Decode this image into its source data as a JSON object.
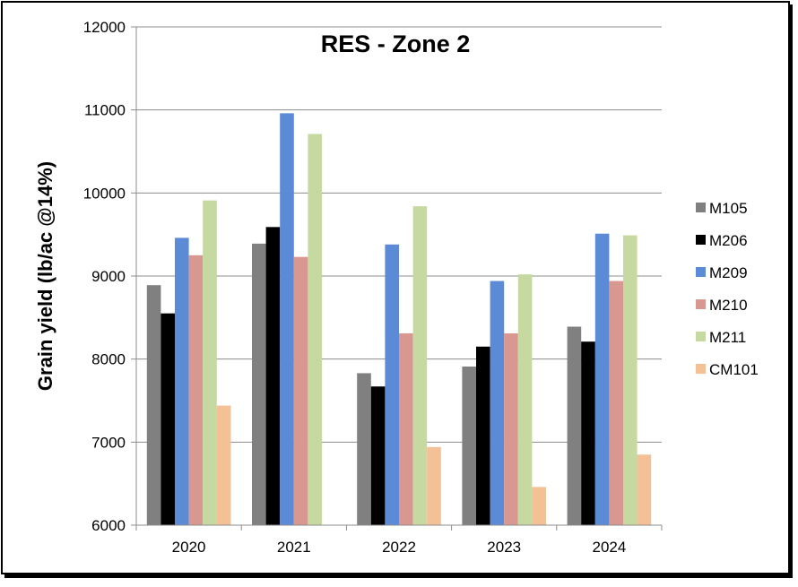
{
  "chart_data": {
    "type": "bar",
    "title": "RES - Zone 2",
    "xlabel": "",
    "ylabel": "Grain yield (lb/ac @14%)",
    "ylim": [
      6000,
      12000
    ],
    "yticks": [
      6000,
      7000,
      8000,
      9000,
      10000,
      11000,
      12000
    ],
    "grid": true,
    "legend_position": "right",
    "categories": [
      "2020",
      "2021",
      "2022",
      "2023",
      "2024"
    ],
    "series": [
      {
        "name": "M105",
        "color": "#808080",
        "values": [
          8890,
          9390,
          7830,
          7910,
          8390
        ]
      },
      {
        "name": "M206",
        "color": "#000000",
        "values": [
          8550,
          9590,
          7670,
          8150,
          8210
        ]
      },
      {
        "name": "M209",
        "color": "#5b8bd6",
        "values": [
          9460,
          10960,
          9380,
          8940,
          9510
        ]
      },
      {
        "name": "M210",
        "color": "#d99792",
        "values": [
          9250,
          9230,
          8310,
          8310,
          8940
        ]
      },
      {
        "name": "M211",
        "color": "#c6d9a0",
        "values": [
          9910,
          10710,
          9840,
          9020,
          9490
        ]
      },
      {
        "name": "CM101",
        "color": "#f4c197",
        "values": [
          7440,
          null,
          6940,
          6460,
          6850
        ]
      }
    ]
  }
}
